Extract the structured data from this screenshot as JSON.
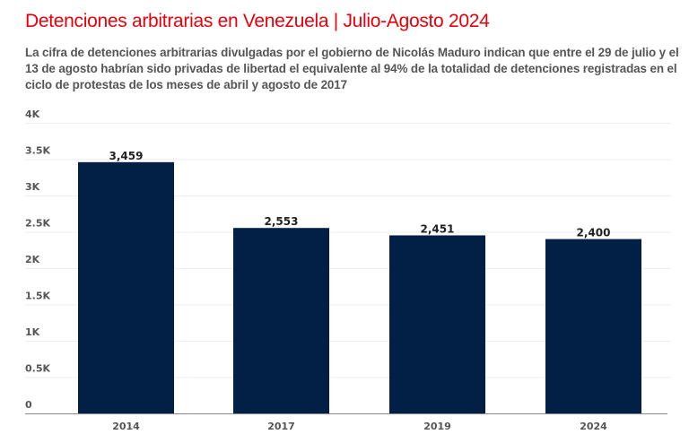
{
  "title": "Detenciones arbitrarias en Venezuela | Julio-Agosto 2024",
  "subtitle": "La cifra de detenciones arbitrarias divulgadas por el gobierno de Nicolás Maduro indican que entre el 29 de julio y el 13 de agosto habrían sido privadas de libertad el equivalente al 94% de la totalidad de detenciones registradas en el ciclo de protestas de los meses de abril y agosto de 2017",
  "colors": {
    "title": "#e8000b",
    "bar": "#022046",
    "grid": "#eeeeee",
    "axis": "#888888"
  },
  "chart_data": {
    "type": "bar",
    "title": "Detenciones arbitrarias en Venezuela | Julio-Agosto 2024",
    "xlabel": "",
    "ylabel": "",
    "categories": [
      "2014",
      "2017",
      "2019",
      "2024"
    ],
    "values": [
      3459,
      2553,
      2451,
      2400
    ],
    "data_labels": [
      "3,459",
      "2,553",
      "2,451",
      "2,400"
    ],
    "ylim": [
      0,
      4000
    ],
    "yticks": [
      0,
      500,
      1000,
      1500,
      2000,
      2500,
      3000,
      3500,
      4000
    ],
    "ytick_labels": [
      "0",
      "0.5K",
      "1K",
      "1.5K",
      "2K",
      "2.5K",
      "3K",
      "3.5K",
      "4K"
    ],
    "grid": true,
    "legend": "none"
  }
}
